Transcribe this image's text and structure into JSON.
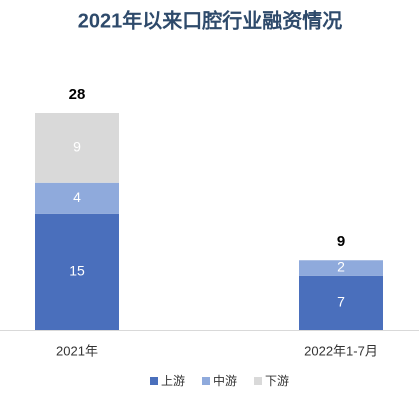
{
  "chart_data": {
    "type": "stacked-bar",
    "title": "2021年以来口腔行业融资情况",
    "categories": [
      "2021年",
      "2022年1-7月"
    ],
    "series": [
      {
        "name": "上游",
        "color": "#4a6fbc",
        "values": [
          15,
          7
        ]
      },
      {
        "name": "中游",
        "color": "#8faadc",
        "values": [
          4,
          2
        ]
      },
      {
        "name": "下游",
        "color": "#d9d9d9",
        "values": [
          9,
          null
        ]
      }
    ],
    "totals": [
      28,
      9
    ],
    "legend": "bottom"
  }
}
